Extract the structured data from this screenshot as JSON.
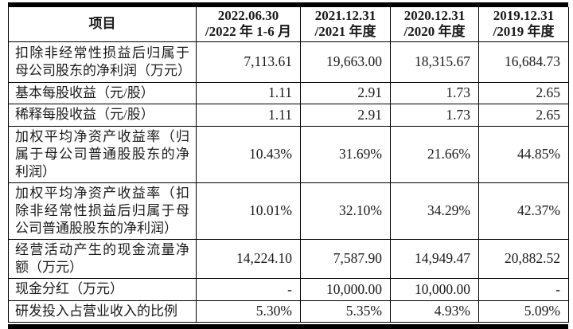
{
  "table": {
    "header": {
      "item_label": "项目",
      "periods": [
        {
          "line1": "2022.06.30",
          "line2": "/2022 年 1-6 月"
        },
        {
          "line1": "2021.12.31",
          "line2": "/2021 年度"
        },
        {
          "line1": "2020.12.31",
          "line2": "/2020 年度"
        },
        {
          "line1": "2019.12.31",
          "line2": "/2019 年度"
        }
      ]
    },
    "rows": [
      {
        "label": "扣除非经常性损益后归属于母公司股东的净利润（万元）",
        "values": [
          "7,113.61",
          "19,663.00",
          "18,315.67",
          "16,684.73"
        ]
      },
      {
        "label": "基本每股收益（元/股）",
        "values": [
          "1.11",
          "2.91",
          "1.73",
          "2.65"
        ]
      },
      {
        "label": "稀释每股收益（元/股）",
        "values": [
          "1.11",
          "2.91",
          "1.73",
          "2.65"
        ]
      },
      {
        "label": "加权平均净资产收益率（归属于母公司普通股股东的净利润）",
        "values": [
          "10.43%",
          "31.69%",
          "21.66%",
          "44.85%"
        ]
      },
      {
        "label": "加权平均净资产收益率（扣除非经常性损益后归属于母公司普通股股东的净利润）",
        "values": [
          "10.01%",
          "32.10%",
          "34.29%",
          "42.37%"
        ]
      },
      {
        "label": "经营活动产生的现金流量净额（万元）",
        "values": [
          "14,224.10",
          "7,587.90",
          "14,949.47",
          "20,882.52"
        ]
      },
      {
        "label": "现金分红（万元）",
        "values": [
          "-",
          "10,000.00",
          "10,000.00",
          "-"
        ]
      },
      {
        "label": "研发投入占营业收入的比例",
        "values": [
          "5.30%",
          "5.35%",
          "4.93%",
          "5.09%"
        ]
      }
    ]
  },
  "colors": {
    "border": "#000000",
    "text": "#1a1a1a",
    "background": "#ffffff"
  }
}
